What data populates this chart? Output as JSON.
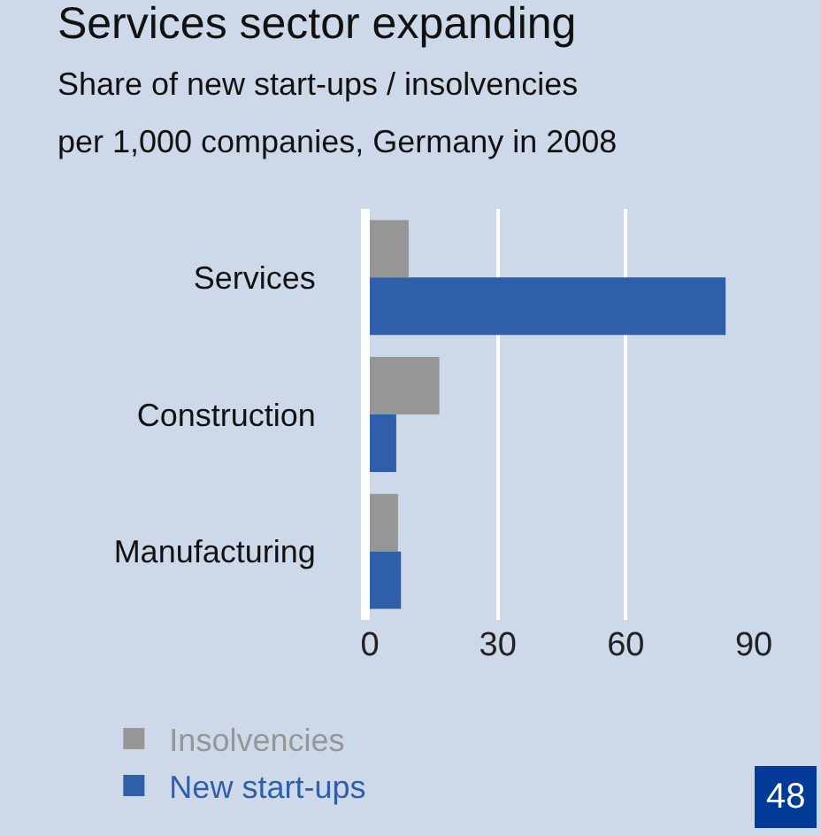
{
  "chart_data": {
    "type": "bar",
    "orientation": "horizontal",
    "title": "Services sector expanding",
    "subtitle": "Share of new start-ups / insolvencies per 1,000 companies, Germany in 2008",
    "categories": [
      "Services",
      "Construction",
      "Manufacturing"
    ],
    "series": [
      {
        "name": "Insolvencies",
        "color": "#969696",
        "values": [
          9.1,
          16.3,
          6.6
        ]
      },
      {
        "name": "New start-ups",
        "color": "#2f5fa8",
        "values": [
          83.4,
          6.2,
          7.3
        ]
      }
    ],
    "xlim": [
      0,
      90
    ],
    "xticks": [
      0,
      30,
      60,
      90
    ],
    "grid": "x",
    "legend": "bottom",
    "annotations": [
      "48"
    ]
  }
}
